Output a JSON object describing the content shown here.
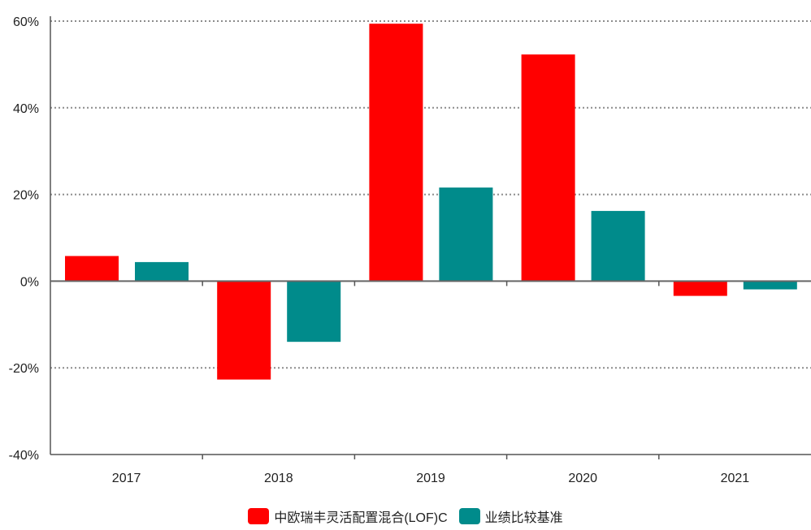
{
  "chart_data": {
    "type": "bar",
    "categories": [
      "2017",
      "2018",
      "2019",
      "2020",
      "2021"
    ],
    "series": [
      {
        "name": "中欧瑞丰灵活配置混合(LOF)C",
        "color": "#ff0000",
        "values": [
          5.8,
          -22.7,
          59.4,
          52.3,
          -3.4
        ]
      },
      {
        "name": "业绩比较基准",
        "color": "#008b8b",
        "values": [
          4.4,
          -14.0,
          21.6,
          16.2,
          -1.9
        ]
      }
    ],
    "ylim": [
      -40,
      60
    ],
    "yticks": [
      "60%",
      "40%",
      "20%",
      "0%",
      "-20%",
      "-40%"
    ],
    "ytick_values": [
      60,
      40,
      20,
      0,
      -20,
      -40
    ],
    "grid": true,
    "legend_position": "bottom-center",
    "title": "",
    "xlabel": "",
    "ylabel": ""
  }
}
